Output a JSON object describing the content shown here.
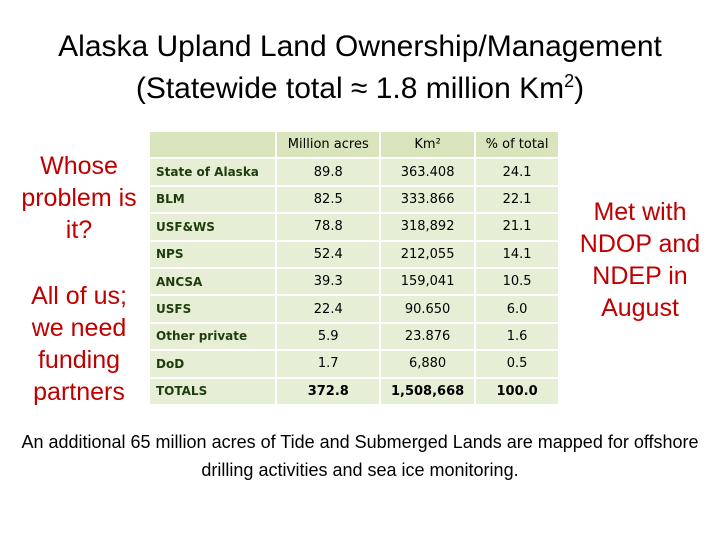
{
  "title": {
    "line1": "Alaska Upland Land Ownership/Management",
    "line2_start": "(Statewide total ≈ 1.8 million Km",
    "line2_superscript": "2",
    "line2_end": ")"
  },
  "left_notes": [
    "Whose problem is it?",
    "All of us; we need funding partners"
  ],
  "right_note": "Met with NDOP and NDEP in August",
  "table": {
    "header": [
      "Million acres",
      "Km²",
      "% of total"
    ],
    "rows": [
      [
        "State of Alaska",
        "89.8",
        "363.408",
        "24.1"
      ],
      [
        "BLM",
        "82.5",
        "333.866",
        "22.1"
      ],
      [
        "USF&WS",
        "78.8",
        "318,892",
        "21.1"
      ],
      [
        "NPS",
        "52.4",
        "212,055",
        "14.1"
      ],
      [
        "ANCSA",
        "39.3",
        "159,041",
        "10.5"
      ],
      [
        "USFS",
        "22.4",
        "90.650",
        "6.0"
      ],
      [
        "Other private",
        "5.9",
        "23.876",
        "1.6"
      ],
      [
        "DoD",
        "1.7",
        "6,880",
        "0.5"
      ],
      [
        "TOTALS",
        "372.8",
        "1,508,668",
        "100.0"
      ]
    ]
  },
  "footer": "An additional 65 million acres of Tide and Submerged Lands are mapped for offshore drilling activities and sea ice monitoring."
}
